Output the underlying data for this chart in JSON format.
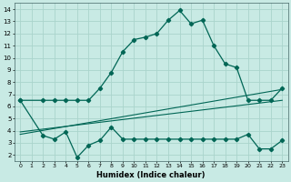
{
  "xlabel": "Humidex (Indice chaleur)",
  "bg_color": "#c8eae4",
  "grid_color": "#aad4cc",
  "line_color": "#006655",
  "xlim": [
    -0.5,
    23.5
  ],
  "ylim": [
    1.5,
    14.5
  ],
  "xticks": [
    0,
    1,
    2,
    3,
    4,
    5,
    6,
    7,
    8,
    9,
    10,
    11,
    12,
    13,
    14,
    15,
    16,
    17,
    18,
    19,
    20,
    21,
    22,
    23
  ],
  "yticks": [
    2,
    3,
    4,
    5,
    6,
    7,
    8,
    9,
    10,
    11,
    12,
    13,
    14
  ],
  "curve1_x": [
    0,
    2,
    3,
    4,
    5,
    6,
    7,
    8,
    9,
    10,
    11,
    12,
    13,
    14,
    15,
    16,
    17,
    18,
    19,
    20,
    21,
    22,
    23
  ],
  "curve1_y": [
    6.5,
    6.5,
    6.5,
    6.5,
    6.5,
    6.5,
    7.5,
    8.8,
    10.5,
    11.5,
    11.7,
    12.0,
    13.1,
    13.9,
    12.8,
    13.1,
    11.0,
    9.5,
    9.2,
    6.5,
    6.5,
    6.5,
    7.5
  ],
  "curve2_x": [
    0,
    2,
    3,
    4,
    5,
    6,
    7,
    8,
    9,
    10,
    11,
    12,
    13,
    14,
    15,
    16,
    17,
    18,
    19,
    20,
    21,
    22,
    23
  ],
  "curve2_y": [
    6.5,
    3.6,
    3.3,
    3.9,
    1.8,
    2.8,
    3.2,
    4.3,
    3.3,
    3.3,
    3.3,
    3.3,
    3.3,
    3.3,
    3.3,
    3.3,
    3.3,
    3.3,
    3.3,
    3.7,
    2.5,
    2.5,
    3.2
  ],
  "line1_x": [
    0,
    23
  ],
  "line1_y": [
    3.9,
    6.5
  ],
  "line2_x": [
    0,
    23
  ],
  "line2_y": [
    3.7,
    7.4
  ]
}
